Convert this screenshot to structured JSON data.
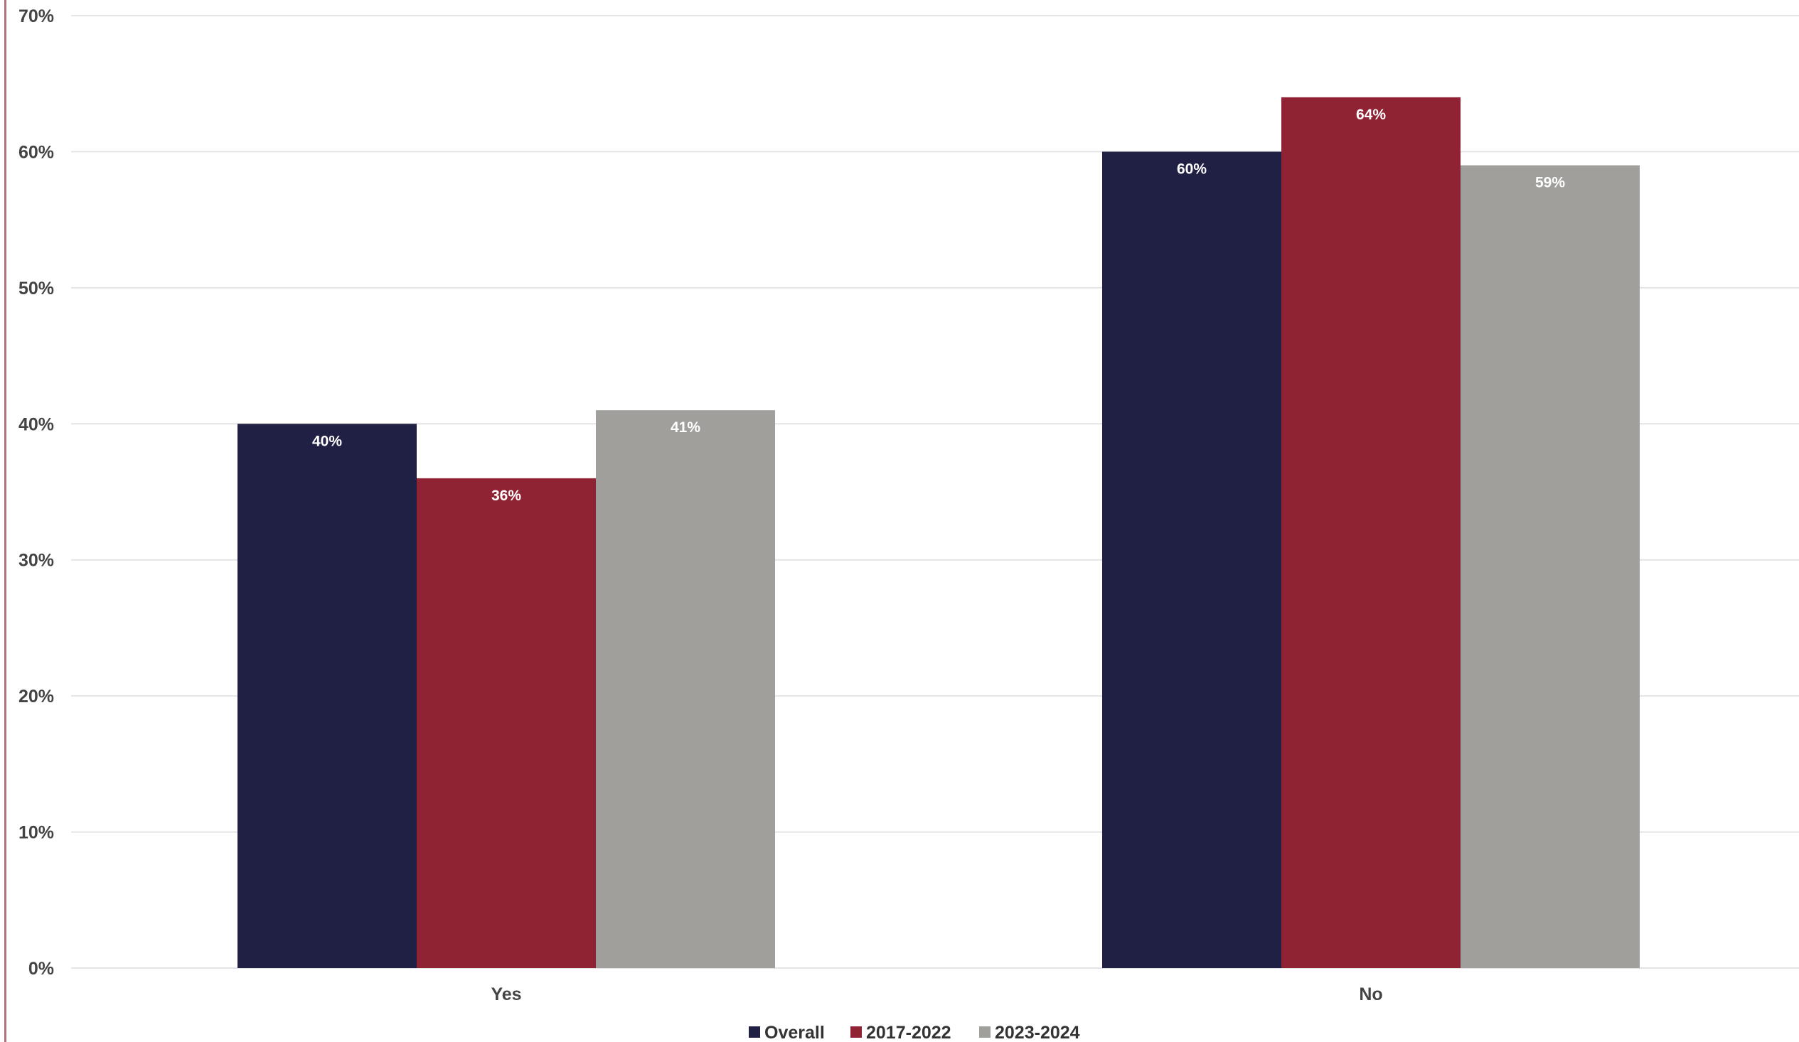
{
  "chart_data": {
    "type": "bar",
    "categories": [
      "Yes",
      "No"
    ],
    "series": [
      {
        "name": "Overall",
        "values": [
          40,
          60
        ],
        "labels": [
          "40%",
          "60%"
        ],
        "color": "#1f2044"
      },
      {
        "name": "2017-2022",
        "values": [
          36,
          64
        ],
        "labels": [
          "36%",
          "64%"
        ],
        "color": "#8f2233"
      },
      {
        "name": "2023-2024",
        "values": [
          41,
          59
        ],
        "labels": [
          "41%",
          "59%"
        ],
        "color": "#a09f9c"
      }
    ],
    "yticks": [
      {
        "value": 0,
        "label": "0%"
      },
      {
        "value": 10,
        "label": "10%"
      },
      {
        "value": 20,
        "label": "20%"
      },
      {
        "value": 30,
        "label": "30%"
      },
      {
        "value": 40,
        "label": "40%"
      },
      {
        "value": 50,
        "label": "50%"
      },
      {
        "value": 60,
        "label": "60%"
      },
      {
        "value": 70,
        "label": "70%"
      }
    ],
    "ylim": [
      0,
      70
    ],
    "grid": true,
    "legend_position": "bottom",
    "title": "",
    "xlabel": "",
    "ylabel": ""
  }
}
